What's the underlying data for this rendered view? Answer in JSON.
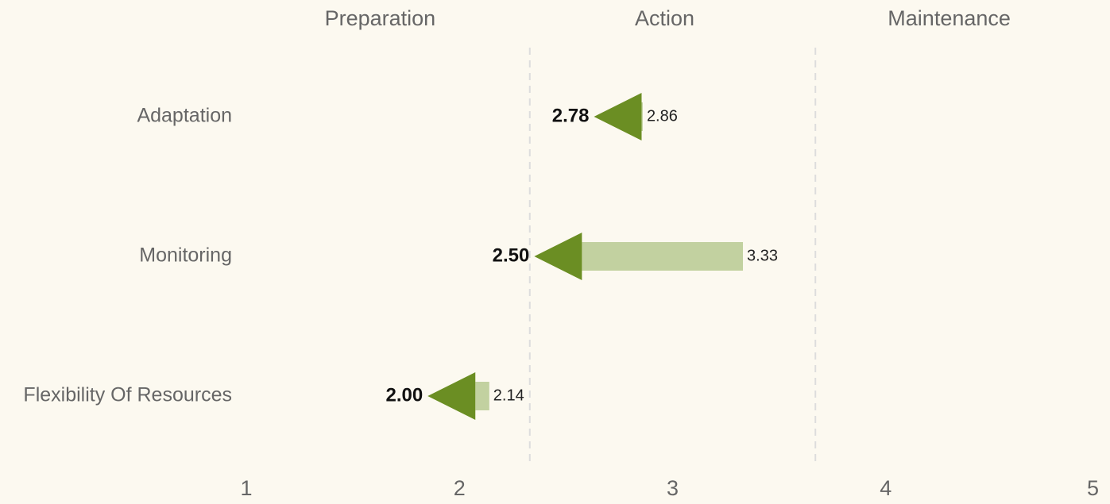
{
  "chart_data": {
    "type": "arrow",
    "categories": [
      "Adaptation",
      "Monitoring",
      "Flexibility Of Resources"
    ],
    "values": [
      2.78,
      2.5,
      2.0
    ],
    "value_labels": [
      "2.78",
      "2.50",
      "2.00"
    ],
    "from_values": [
      2.86,
      3.33,
      2.14
    ],
    "color": "#6b8e23",
    "bar_color": "#c2d1a0",
    "stages": [
      {
        "name": "Preparation",
        "range": [
          1,
          2.33
        ]
      },
      {
        "name": "Action",
        "range": [
          2.33,
          3.67
        ]
      },
      {
        "name": "Maintenance",
        "range": [
          3.67,
          5
        ]
      }
    ],
    "xlim": [
      1,
      5
    ],
    "xticks": [
      1,
      2,
      3,
      4,
      5
    ]
  }
}
